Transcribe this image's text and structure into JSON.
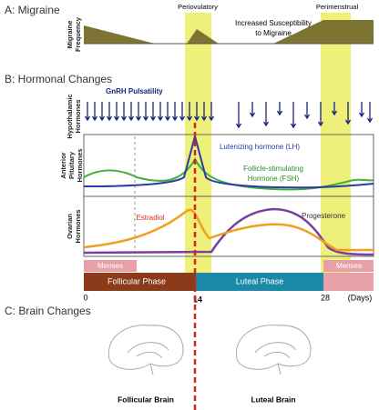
{
  "panel_a": {
    "title": "A: Migraine",
    "y_label": [
      "Migraine",
      "Frequency"
    ],
    "band_labels": [
      "Periovulatory",
      "Perimenstrual"
    ],
    "annotation": [
      "Increased Susceptibility",
      "to Migraine"
    ]
  },
  "panel_b": {
    "title": "B: Hormonal Changes",
    "gnrh_label": "GnRH Pulsatility",
    "rows": [
      {
        "label": [
          "Hypothalamic",
          "Hormones"
        ]
      },
      {
        "label": [
          "Anterior",
          "Pituitary",
          "Hormones"
        ]
      },
      {
        "label": [
          "Ovarian",
          "Hormones"
        ]
      }
    ],
    "curve_labels": {
      "lh": "Lutenizing hormone (LH)",
      "fsh": [
        "Follicle-stimulating",
        "Hormone (FSH)"
      ],
      "estradiol": "Estradiol",
      "progesterone": "Progesterone"
    },
    "menses": [
      "Menses",
      "Menses"
    ],
    "phases": [
      "Follicular Phase",
      "Luteal Phase"
    ],
    "days_axis": [
      "0",
      "14",
      "28",
      "(Days)"
    ]
  },
  "panel_c": {
    "title": "C: Brain Changes",
    "brains": [
      "Follicular Brain",
      "Luteal Brain"
    ]
  }
}
